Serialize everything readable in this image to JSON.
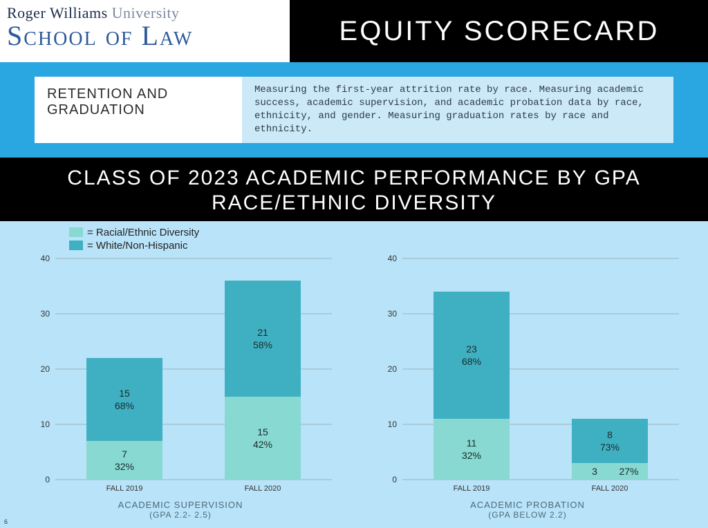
{
  "logo": {
    "line1a": "Roger Williams",
    "line1b": "University",
    "line2": "School of Law"
  },
  "main_title": "EQUITY SCORECARD",
  "section": {
    "title": "RETENTION AND GRADUATION",
    "description": "Measuring the first-year attrition rate by race. Measuring academic success, academic supervision, and academic probation data by race, ethnicity, and gender. Measuring graduation rates by race and ethnicity."
  },
  "band_title_line1": "CLASS OF 2023 ACADEMIC PERFORMANCE BY  GPA",
  "band_title_line2": "RACE/ETHNIC DIVERSITY",
  "legend": {
    "series1": "= Racial/Ethnic Diversity",
    "series2": "= White/Non-Hispanic"
  },
  "colors": {
    "diversity": "#87d9d1",
    "white_nh": "#3fb0c2",
    "page_bg": "#b9e3f8",
    "grid": "#7a8a8a",
    "blue_strip": "#2aa6e0",
    "black": "#000000",
    "logo_dark": "#1a2c4a",
    "logo_blue": "#2d5a9a"
  },
  "chart_common": {
    "ylim_max": 40,
    "yticks": [
      0,
      10,
      20,
      30,
      40
    ],
    "categories": [
      "FALL  2019",
      "FALL 2020"
    ]
  },
  "chart_left": {
    "caption": "ACADEMIC SUPERVISION",
    "caption_sub": "(GPA 2.2- 2.5)",
    "bars": [
      {
        "cat": "FALL  2019",
        "bottom_val": 7,
        "bottom_pct": "32%",
        "top_val": 15,
        "top_pct": "68%"
      },
      {
        "cat": "FALL 2020",
        "bottom_val": 15,
        "bottom_pct": "42%",
        "top_val": 21,
        "top_pct": "58%"
      }
    ]
  },
  "chart_right": {
    "caption": "ACADEMIC PROBATION",
    "caption_sub": "(GPA BELOW 2.2)",
    "bars": [
      {
        "cat": "FALL  2019",
        "bottom_val": 11,
        "bottom_pct": "32%",
        "top_val": 23,
        "top_pct": "68%"
      },
      {
        "cat": "FALL 2020",
        "bottom_val": 3,
        "bottom_pct": "27%",
        "top_val": 8,
        "top_pct": "73%"
      }
    ]
  },
  "page_number": "6"
}
